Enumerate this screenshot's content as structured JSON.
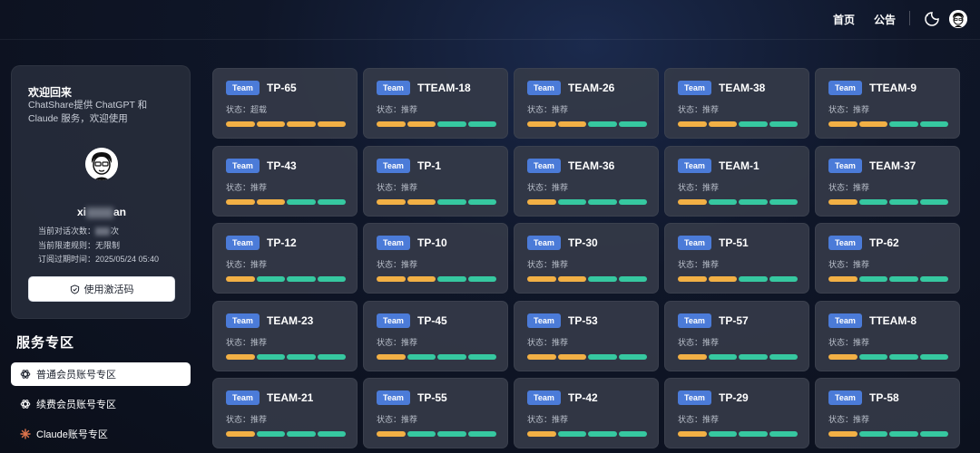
{
  "header": {
    "nav": [
      "首页",
      "公告"
    ],
    "icons": [
      "theme-toggle-icon",
      "user-avatar-icon"
    ]
  },
  "profile": {
    "title": "欢迎回来",
    "subtitle": "ChatShare提供 ChatGPT 和 Claude 服务，欢迎使用",
    "username_prefix": "xi",
    "username_suffix": "an",
    "info_line1_label": "当前对话次数：",
    "info_line1_value_suffix": "次",
    "info_line2": "当前限速规则：无限制",
    "info_line3": "订阅过期时间：2025/05/24 05:40",
    "activate_label": "使用激活码"
  },
  "services": {
    "title": "服务专区",
    "items": [
      {
        "label": "普通会员账号专区",
        "icon": "chatgpt-icon"
      },
      {
        "label": "续费会员账号专区",
        "icon": "chatgpt-icon"
      },
      {
        "label": "Claude账号专区",
        "icon": "claude-icon"
      }
    ]
  },
  "colors": {
    "badge": "#4b7bd8",
    "bar_yellow": "#f2b045",
    "bar_green": "#36c8a0",
    "card_bg": "#343a48"
  },
  "cards": [
    {
      "badge": "Team",
      "name": "TP-65",
      "status": "状态：超载",
      "bars": [
        "y",
        "y",
        "y",
        "y"
      ]
    },
    {
      "badge": "Team",
      "name": "TTEAM-18",
      "status": "状态：推荐",
      "bars": [
        "y",
        "y",
        "g",
        "g"
      ]
    },
    {
      "badge": "Team",
      "name": "TEAM-26",
      "status": "状态：推荐",
      "bars": [
        "y",
        "y",
        "g",
        "g"
      ]
    },
    {
      "badge": "Team",
      "name": "TEAM-38",
      "status": "状态：推荐",
      "bars": [
        "y",
        "y",
        "g",
        "g"
      ]
    },
    {
      "badge": "Team",
      "name": "TTEAM-9",
      "status": "状态：推荐",
      "bars": [
        "y",
        "y",
        "g",
        "g"
      ]
    },
    {
      "badge": "Team",
      "name": "TP-43",
      "status": "状态：推荐",
      "bars": [
        "y",
        "y",
        "g",
        "g"
      ]
    },
    {
      "badge": "Team",
      "name": "TP-1",
      "status": "状态：推荐",
      "bars": [
        "y",
        "y",
        "g",
        "g"
      ]
    },
    {
      "badge": "Team",
      "name": "TEAM-36",
      "status": "状态：推荐",
      "bars": [
        "y",
        "g",
        "g",
        "g"
      ]
    },
    {
      "badge": "Team",
      "name": "TEAM-1",
      "status": "状态：推荐",
      "bars": [
        "y",
        "g",
        "g",
        "g"
      ]
    },
    {
      "badge": "Team",
      "name": "TEAM-37",
      "status": "状态：推荐",
      "bars": [
        "y",
        "g",
        "g",
        "g"
      ]
    },
    {
      "badge": "Team",
      "name": "TP-12",
      "status": "状态：推荐",
      "bars": [
        "y",
        "g",
        "g",
        "g"
      ]
    },
    {
      "badge": "Team",
      "name": "TP-10",
      "status": "状态：推荐",
      "bars": [
        "y",
        "y",
        "g",
        "g"
      ]
    },
    {
      "badge": "Team",
      "name": "TP-30",
      "status": "状态：推荐",
      "bars": [
        "y",
        "y",
        "g",
        "g"
      ]
    },
    {
      "badge": "Team",
      "name": "TP-51",
      "status": "状态：推荐",
      "bars": [
        "y",
        "y",
        "g",
        "g"
      ]
    },
    {
      "badge": "Team",
      "name": "TP-62",
      "status": "状态：推荐",
      "bars": [
        "y",
        "g",
        "g",
        "g"
      ]
    },
    {
      "badge": "Team",
      "name": "TEAM-23",
      "status": "状态：推荐",
      "bars": [
        "y",
        "g",
        "g",
        "g"
      ]
    },
    {
      "badge": "Team",
      "name": "TP-45",
      "status": "状态：推荐",
      "bars": [
        "y",
        "g",
        "g",
        "g"
      ]
    },
    {
      "badge": "Team",
      "name": "TP-53",
      "status": "状态：推荐",
      "bars": [
        "y",
        "y",
        "g",
        "g"
      ]
    },
    {
      "badge": "Team",
      "name": "TP-57",
      "status": "状态：推荐",
      "bars": [
        "y",
        "g",
        "g",
        "g"
      ]
    },
    {
      "badge": "Team",
      "name": "TTEAM-8",
      "status": "状态：推荐",
      "bars": [
        "y",
        "g",
        "g",
        "g"
      ]
    },
    {
      "badge": "Team",
      "name": "TEAM-21",
      "status": "状态：推荐",
      "bars": [
        "y",
        "g",
        "g",
        "g"
      ]
    },
    {
      "badge": "Team",
      "name": "TP-55",
      "status": "状态：推荐",
      "bars": [
        "y",
        "g",
        "g",
        "g"
      ]
    },
    {
      "badge": "Team",
      "name": "TP-42",
      "status": "状态：推荐",
      "bars": [
        "y",
        "g",
        "g",
        "g"
      ]
    },
    {
      "badge": "Team",
      "name": "TP-29",
      "status": "状态：推荐",
      "bars": [
        "y",
        "g",
        "g",
        "g"
      ]
    },
    {
      "badge": "Team",
      "name": "TP-58",
      "status": "状态：推荐",
      "bars": [
        "y",
        "g",
        "g",
        "g"
      ]
    }
  ]
}
